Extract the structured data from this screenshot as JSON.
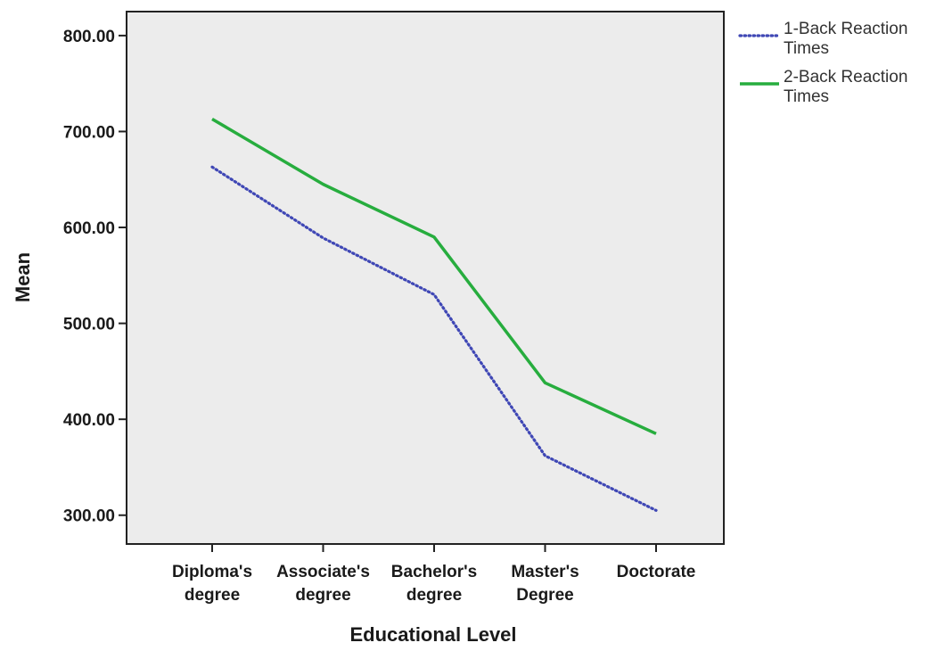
{
  "chart_data": {
    "type": "line",
    "title": "",
    "xlabel": "Educational Level",
    "ylabel": "Mean",
    "categories": [
      [
        "Diploma's",
        "degree"
      ],
      [
        "Associate's",
        "degree"
      ],
      [
        "Bachelor's",
        "degree"
      ],
      [
        "Master's",
        "Degree"
      ],
      [
        "Doctorate"
      ]
    ],
    "series": [
      {
        "name": [
          "1-Back Reaction",
          "Times"
        ],
        "values": [
          663,
          589,
          530,
          362,
          305
        ],
        "color": "#3f47b5",
        "style": "dotted"
      },
      {
        "name": [
          "2-Back Reaction",
          "Times"
        ],
        "values": [
          713,
          645,
          590,
          438,
          385
        ],
        "color": "#27ad3e",
        "style": "solid"
      }
    ],
    "ylim": [
      270,
      825
    ],
    "yticks": [
      300,
      400,
      500,
      600,
      700,
      800
    ],
    "ytick_labels": [
      "300.00",
      "400.00",
      "500.00",
      "600.00",
      "700.00",
      "800.00"
    ],
    "grid": false,
    "legend_position": "top-right",
    "plot_background": "#ececec"
  }
}
